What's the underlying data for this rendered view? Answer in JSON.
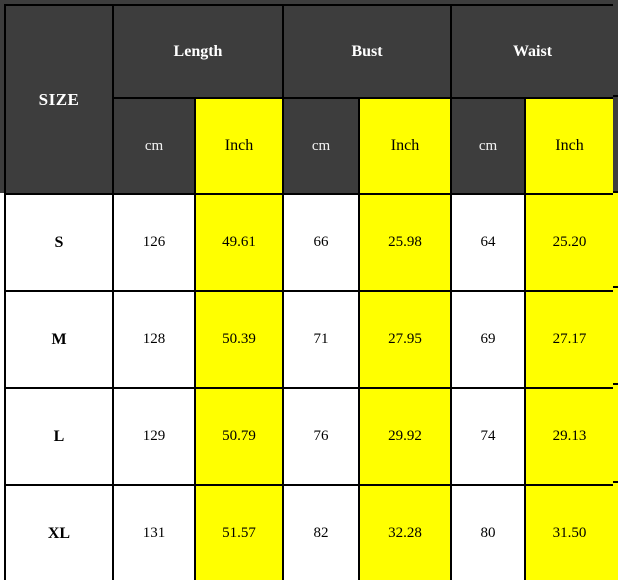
{
  "table": {
    "size_header": "SIZE",
    "groups": [
      {
        "label": "Length"
      },
      {
        "label": "Bust"
      },
      {
        "label": "Waist"
      }
    ],
    "unit_cm": "cm",
    "unit_inch": "Inch",
    "rows": [
      {
        "size": "S",
        "cells": [
          "126",
          "49.61",
          "66",
          "25.98",
          "64",
          "25.20"
        ]
      },
      {
        "size": "M",
        "cells": [
          "128",
          "50.39",
          "71",
          "27.95",
          "69",
          "27.17"
        ]
      },
      {
        "size": "L",
        "cells": [
          "129",
          "50.79",
          "76",
          "29.92",
          "74",
          "29.13"
        ]
      },
      {
        "size": "XL",
        "cells": [
          "131",
          "51.57",
          "82",
          "32.28",
          "80",
          "31.50"
        ]
      }
    ],
    "colors": {
      "header_bg": "#3d3d3d",
      "highlight_bg": "#ffff00",
      "header_text": "#ffffff",
      "body_text": "#000000",
      "border": "#000000"
    }
  },
  "chart_data": {
    "type": "table",
    "title": "",
    "column_groups": [
      "Length",
      "Bust",
      "Waist"
    ],
    "columns": [
      "SIZE",
      "Length cm",
      "Length Inch",
      "Bust cm",
      "Bust Inch",
      "Waist cm",
      "Waist Inch"
    ],
    "rows": [
      [
        "S",
        126,
        49.61,
        66,
        25.98,
        64,
        25.2
      ],
      [
        "M",
        128,
        50.39,
        71,
        27.95,
        69,
        27.17
      ],
      [
        "L",
        129,
        50.79,
        76,
        29.92,
        74,
        29.13
      ],
      [
        "XL",
        131,
        51.57,
        82,
        32.28,
        80,
        31.5
      ]
    ]
  }
}
